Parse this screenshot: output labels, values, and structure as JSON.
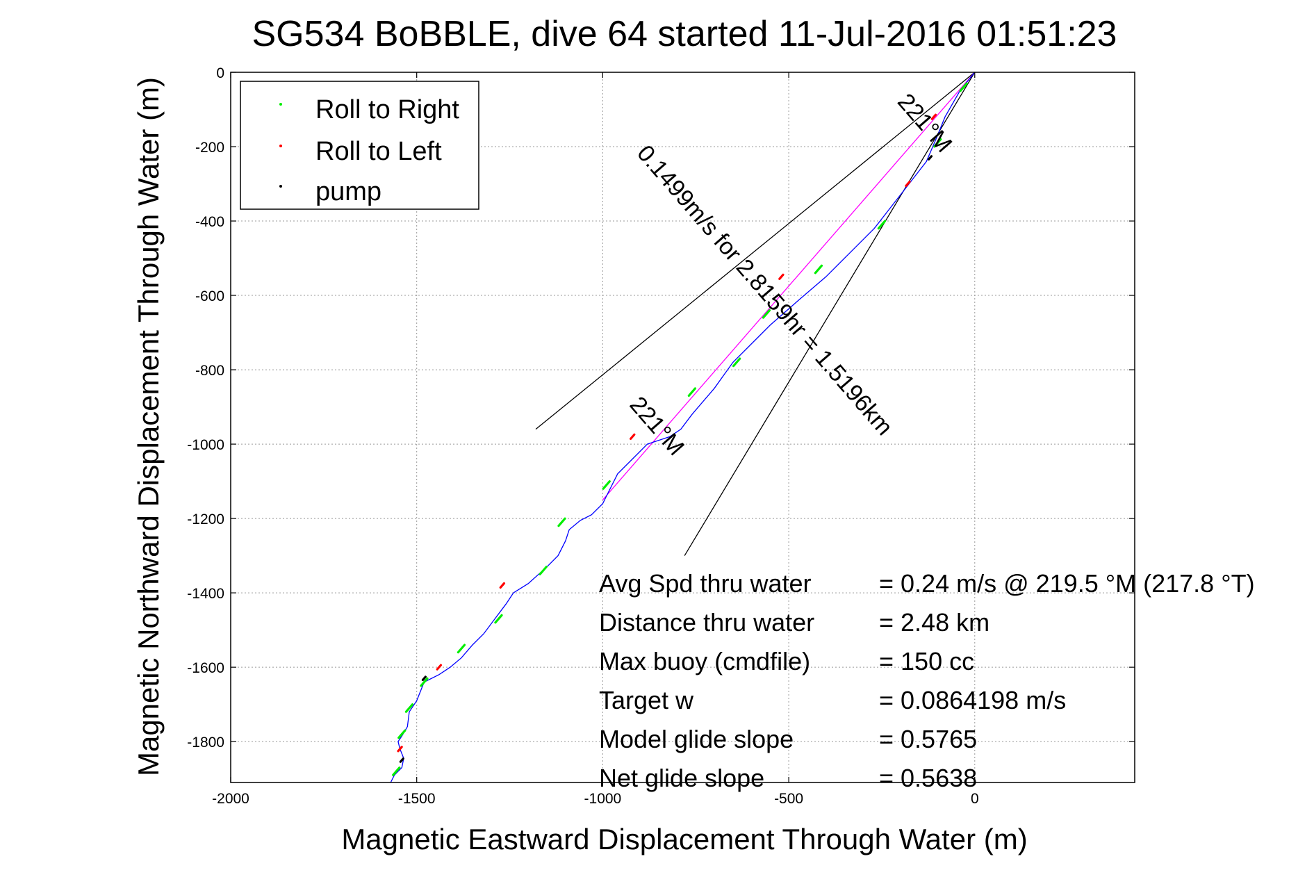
{
  "chart_data": {
    "type": "line",
    "title": "SG534 BoBBLE, dive 64 started 11-Jul-2016 01:51:23",
    "xlabel": "Magnetic Eastward Displacement Through Water (m)",
    "ylabel": "Magnetic Northward Displacement Through Water (m)",
    "xlim": [
      -2000,
      430
    ],
    "ylim": [
      -1910,
      0
    ],
    "xticks": [
      -2000,
      -1500,
      -1000,
      -500,
      0
    ],
    "yticks": [
      0,
      -200,
      -400,
      -600,
      -800,
      -1000,
      -1200,
      -1400,
      -1600,
      -1800
    ],
    "grid": true,
    "legend_position": "top-left",
    "colors": {
      "track": "#0000ff",
      "roll_right": "#00ee00",
      "roll_left": "#ff0000",
      "pump": "#000000",
      "current": "#ff00ff",
      "cone": "#000000"
    },
    "legend": [
      {
        "label": "Roll to Right",
        "color": "#00ee00"
      },
      {
        "label": "Roll to Left",
        "color": "#ff0000"
      },
      {
        "label": "pump",
        "color": "#000000"
      }
    ],
    "track": {
      "x": [
        0,
        -40,
        -80,
        -100,
        -130,
        -200,
        -270,
        -330,
        -400,
        -470,
        -550,
        -610,
        -650,
        -700,
        -760,
        -790,
        -820,
        -880,
        -920,
        -960,
        -990,
        -1000,
        -1030,
        -1060,
        -1090,
        -1100,
        -1120,
        -1150,
        -1200,
        -1240,
        -1260,
        -1290,
        -1320,
        -1350,
        -1380,
        -1410,
        -1440,
        -1480,
        -1500,
        -1520,
        -1525,
        -1540,
        -1550,
        -1545,
        -1535,
        -1540,
        -1560,
        -1570
      ],
      "y": [
        0,
        -50,
        -120,
        -170,
        -240,
        -330,
        -420,
        -480,
        -550,
        -610,
        -680,
        -740,
        -780,
        -850,
        -920,
        -960,
        -980,
        -1000,
        -1040,
        -1080,
        -1140,
        -1160,
        -1190,
        -1205,
        -1230,
        -1260,
        -1300,
        -1330,
        -1375,
        -1400,
        -1430,
        -1470,
        -1510,
        -1540,
        -1575,
        -1600,
        -1620,
        -1640,
        -1690,
        -1720,
        -1760,
        -1785,
        -1800,
        -1820,
        -1845,
        -1870,
        -1890,
        -1910
      ]
    },
    "roll_right_points": [
      [
        -30,
        -40
      ],
      [
        -100,
        -190
      ],
      [
        -250,
        -410
      ],
      [
        -420,
        -530
      ],
      [
        -560,
        -650
      ],
      [
        -640,
        -780
      ],
      [
        -760,
        -860
      ],
      [
        -990,
        -1110
      ],
      [
        -1110,
        -1210
      ],
      [
        -1160,
        -1340
      ],
      [
        -1280,
        -1470
      ],
      [
        -1380,
        -1550
      ],
      [
        -1480,
        -1640
      ],
      [
        -1520,
        -1710
      ],
      [
        -1540,
        -1780
      ],
      [
        -1555,
        -1880
      ]
    ],
    "roll_left_points": [
      [
        -110,
        -120
      ],
      [
        -180,
        -300
      ],
      [
        -520,
        -550
      ],
      [
        -920,
        -980
      ],
      [
        -1270,
        -1380
      ],
      [
        -1440,
        -1600
      ],
      [
        -1545,
        -1820
      ]
    ],
    "pump_points": [
      [
        -120,
        -230
      ],
      [
        -1480,
        -1630
      ],
      [
        -1540,
        -1850
      ]
    ],
    "current_line": {
      "x": [
        0,
        -1000
      ],
      "y": [
        0,
        -1150
      ]
    },
    "cone_lines": [
      {
        "x": [
          0,
          -1180
        ],
        "y": [
          0,
          -960
        ]
      },
      {
        "x": [
          0,
          -780
        ],
        "y": [
          0,
          -1300
        ]
      }
    ],
    "annotations": [
      {
        "text": "221°M",
        "x": -150,
        "y": -150,
        "angle_deg": 49
      },
      {
        "text": "0.1499m/s for 2.8159hr = 1.5196km",
        "x": -580,
        "y": -600,
        "angle_deg": 49
      },
      {
        "text": "221°M",
        "x": -870,
        "y": -965,
        "angle_deg": 49
      }
    ],
    "stats": [
      {
        "label": "Avg Spd thru water",
        "value": "=  0.24 m/s @ 219.5 °M (217.8 °T)"
      },
      {
        "label": "Distance thru water",
        "value": "=  2.48 km"
      },
      {
        "label": "Max buoy (cmdfile)",
        "value": "= 150 cc"
      },
      {
        "label": "Target w",
        "value": "= 0.0864198 m/s"
      },
      {
        "label": "Model glide slope",
        "value": "= 0.5765"
      },
      {
        "label": "Net glide slope",
        "value": "= 0.5638"
      }
    ]
  }
}
